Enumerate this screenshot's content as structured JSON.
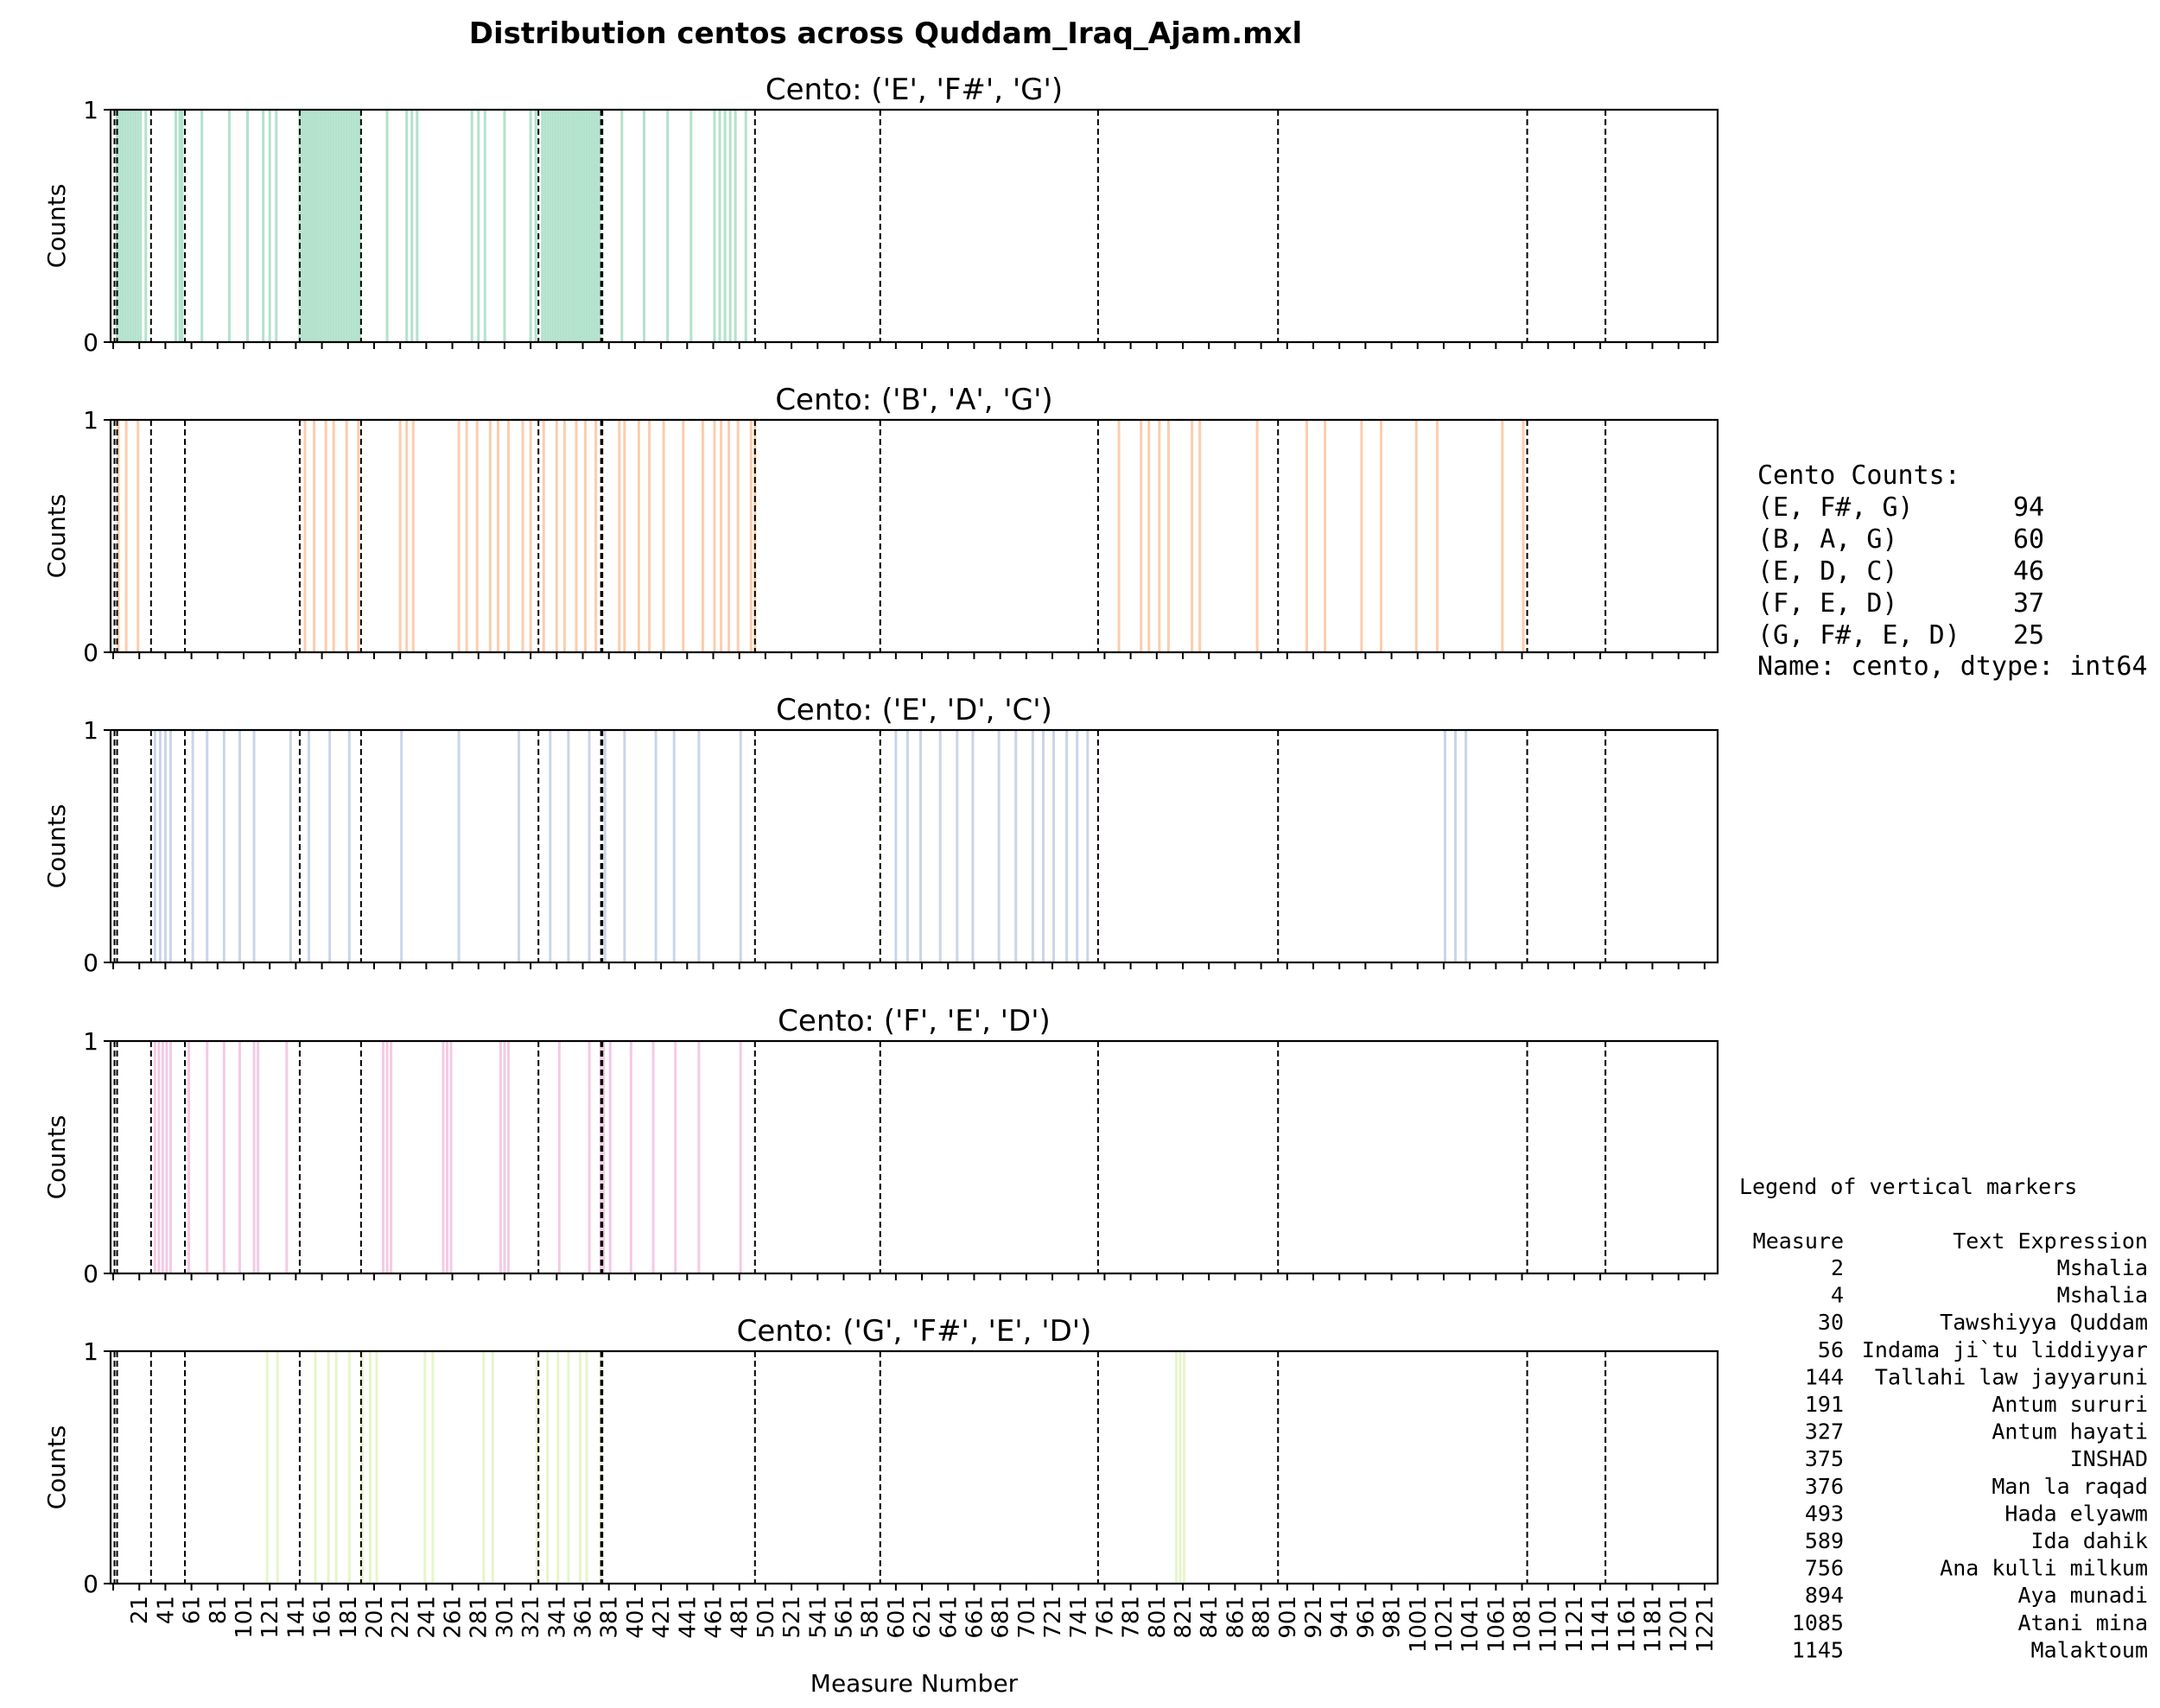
{
  "chart_data": {
    "type": "bar",
    "title": "Distribution centos across Quddam_Iraq_Ajam.mxl",
    "xlabel": "Measure Number",
    "ylabel": "Counts",
    "xlim": [
      -1,
      1231
    ],
    "ylim": [
      0,
      1
    ],
    "y_ticks": [
      0,
      1
    ],
    "x_ticks": [
      1,
      21,
      41,
      61,
      81,
      101,
      121,
      141,
      161,
      181,
      201,
      221,
      241,
      261,
      281,
      301,
      321,
      341,
      361,
      381,
      401,
      421,
      441,
      461,
      481,
      501,
      521,
      541,
      561,
      581,
      601,
      621,
      641,
      661,
      681,
      701,
      721,
      741,
      761,
      781,
      801,
      821,
      841,
      861,
      881,
      901,
      921,
      941,
      961,
      981,
      1001,
      1021,
      1041,
      1061,
      1081,
      1101,
      1121,
      1141,
      1161,
      1181,
      1201,
      1221
    ],
    "x_tick_labels": [
      "",
      "21",
      "41",
      "61",
      "81",
      "101",
      "121",
      "141",
      "161",
      "181",
      "201",
      "221",
      "241",
      "261",
      "281",
      "301",
      "321",
      "341",
      "361",
      "381",
      "401",
      "421",
      "441",
      "461",
      "481",
      "501",
      "521",
      "541",
      "561",
      "581",
      "601",
      "621",
      "641",
      "661",
      "681",
      "701",
      "721",
      "741",
      "761",
      "781",
      "801",
      "821",
      "841",
      "861",
      "881",
      "901",
      "921",
      "941",
      "961",
      "981",
      "1001",
      "1021",
      "1041",
      "1061",
      "1081",
      "1101",
      "1121",
      "1141",
      "1161",
      "1181",
      "1201",
      "1221"
    ],
    "marker_measures": [
      2,
      4,
      30,
      56,
      144,
      191,
      327,
      375,
      376,
      493,
      589,
      756,
      894,
      1085,
      1145
    ],
    "series": [
      {
        "name": "Cento: ('E', 'F#', 'G')",
        "color": "#b3e2cd",
        "measures": [
          4,
          6,
          8,
          10,
          12,
          14,
          16,
          18,
          20,
          22,
          26,
          49,
          52,
          54,
          69,
          90,
          104,
          116,
          121,
          126,
          144,
          146,
          148,
          150,
          152,
          154,
          156,
          158,
          160,
          162,
          164,
          166,
          168,
          170,
          172,
          174,
          176,
          178,
          180,
          182,
          184,
          186,
          188,
          190,
          211,
          226,
          230,
          234,
          276,
          281,
          286,
          301,
          321,
          325,
          330,
          332,
          334,
          336,
          338,
          340,
          342,
          344,
          346,
          348,
          350,
          352,
          354,
          356,
          358,
          360,
          362,
          364,
          366,
          368,
          370,
          372,
          374,
          391,
          408,
          426,
          444,
          462,
          466,
          470,
          474,
          478,
          486
        ]
      },
      {
        "name": "Cento: ('B', 'A', 'G')",
        "color": "#fdcdac",
        "measures": [
          5,
          11,
          20,
          148,
          155,
          164,
          170,
          180,
          189,
          221,
          226,
          231,
          266,
          272,
          280,
          290,
          296,
          304,
          315,
          321,
          331,
          341,
          347,
          356,
          363,
          371,
          389,
          393,
          404,
          412,
          423,
          438,
          453,
          462,
          467,
          473,
          480,
          490,
          493,
          772,
          789,
          795,
          803,
          810,
          828,
          834,
          878,
          916,
          930,
          958,
          973,
          1000,
          1016,
          1066,
          1082
        ]
      },
      {
        "name": "Cento: ('E', 'D', 'C')",
        "color": "#cbd5e8",
        "measures": [
          33,
          37,
          41,
          45,
          62,
          73,
          86,
          98,
          109,
          137,
          151,
          167,
          182,
          222,
          266,
          312,
          336,
          350,
          366,
          378,
          393,
          417,
          431,
          450,
          482,
          601,
          610,
          620,
          635,
          648,
          660,
          680,
          693,
          706,
          714,
          722,
          732,
          740,
          748,
          1022,
          1030,
          1038
        ]
      },
      {
        "name": "Cento: ('F', 'E', 'D')",
        "color": "#f4cae4",
        "measures": [
          33,
          36,
          39,
          42,
          45,
          59,
          73,
          86,
          98,
          109,
          112,
          134,
          208,
          211,
          214,
          254,
          257,
          260,
          298,
          301,
          304,
          343,
          366,
          375,
          377,
          382,
          398,
          415,
          432,
          450,
          482
        ]
      },
      {
        "name": "Cento: ('G', 'F#', 'E', 'D')",
        "color": "#e6f5c9",
        "measures": [
          119,
          127,
          156,
          166,
          172,
          182,
          192,
          198,
          203,
          240,
          246,
          285,
          292,
          326,
          334,
          342,
          350,
          359,
          364,
          375,
          816,
          819,
          822
        ]
      }
    ]
  },
  "counts_box": {
    "title": "Cento Counts:",
    "rows": [
      {
        "label": "(E, F#, G)",
        "value": "94"
      },
      {
        "label": "(B, A, G)",
        "value": "60"
      },
      {
        "label": "(E, D, C)",
        "value": "46"
      },
      {
        "label": "(F, E, D)",
        "value": "37"
      },
      {
        "label": "(G, F#, E, D)",
        "value": "25"
      }
    ],
    "footer": "Name: cento, dtype: int64"
  },
  "marker_legend": {
    "title": "Legend of vertical markers",
    "col_measure": "Measure",
    "col_text": "Text Expression",
    "rows": [
      {
        "measure": "2",
        "text": "Mshalia"
      },
      {
        "measure": "4",
        "text": "Mshalia"
      },
      {
        "measure": "30",
        "text": "Tawshiyya Quddam"
      },
      {
        "measure": "56",
        "text": "Indama ji`tu liddiyyar"
      },
      {
        "measure": "144",
        "text": "Tallahi law jayyaruni"
      },
      {
        "measure": "191",
        "text": "Antum sururi"
      },
      {
        "measure": "327",
        "text": "Antum hayati"
      },
      {
        "measure": "375",
        "text": "INSHAD"
      },
      {
        "measure": "376",
        "text": "Man la raqad"
      },
      {
        "measure": "493",
        "text": "Hada elyawm"
      },
      {
        "measure": "589",
        "text": "Ida dahik"
      },
      {
        "measure": "756",
        "text": "Ana kulli milkum"
      },
      {
        "measure": "894",
        "text": "Aya munadi"
      },
      {
        "measure": "1085",
        "text": "Atani mina"
      },
      {
        "measure": "1145",
        "text": "Malaktoum"
      }
    ]
  }
}
